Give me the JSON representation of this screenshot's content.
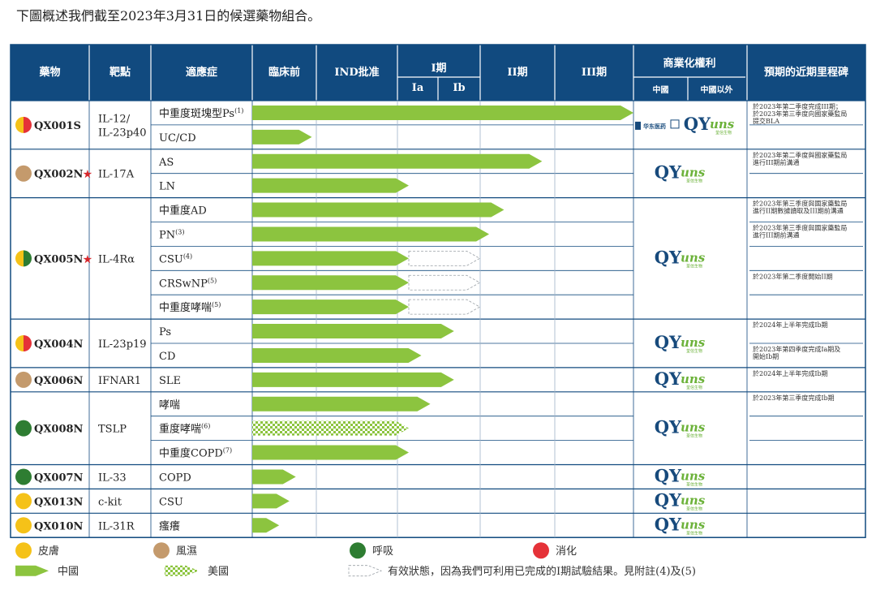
{
  "intro": "下圖概述我們截至2023年3月31日的候選藥物組合。",
  "colors": {
    "header": "#114a7f",
    "china_arrow": "#8cc43f",
    "us_arrow_pattern": "#8cc43f",
    "derm": "#f5c218",
    "rheum": "#c49a6c",
    "resp": "#2e7d32",
    "digest": "#e53238"
  },
  "headers": {
    "drug": "藥物",
    "target": "靶點",
    "indication": "適應症",
    "preclinical": "臨床前",
    "ind": "IND批准",
    "phase1": "I期",
    "phase1a": "Ia",
    "phase1b": "Ib",
    "phase2": "II期",
    "phase3": "III期",
    "commercial": "商業化權利",
    "commercial_china": "中國",
    "commercial_ex_china": "中國以外",
    "milestones": "預期的近期里程碑"
  },
  "partner": {
    "name": "华东医药"
  },
  "logo": {
    "mark": "QY",
    "script": "uns",
    "sub": "荃信生物"
  },
  "chart_data": {
    "type": "table",
    "stage_order": [
      "臨床前",
      "IND批准",
      "Ia",
      "Ib",
      "II期",
      "III期"
    ],
    "drugs": [
      {
        "name": "QX001S",
        "star": "",
        "target": "IL-12/\nIL-23p40",
        "areas": [
          "derm",
          "digest"
        ],
        "rights": "partner+qyuns",
        "indications": [
          {
            "name": "中重度斑塊型Ps",
            "note": "(1)",
            "china_progress": 6.0,
            "dashed_to": null,
            "us": false
          },
          {
            "name": "UC/CD",
            "note": "",
            "china_progress": 0.93,
            "dashed_to": null,
            "us": false
          }
        ],
        "milestones": [
          "於2023年第二季度完成III期；\n於2023年第三季度向國家藥監局\n提交BLA",
          ""
        ]
      },
      {
        "name": "QX002N",
        "star": "★",
        "target": "IL-17A",
        "areas": [
          "rheum"
        ],
        "rights": "qyuns",
        "indications": [
          {
            "name": "AS",
            "note": "",
            "china_progress": 4.83,
            "dashed_to": null,
            "us": false
          },
          {
            "name": "LN",
            "note": "",
            "china_progress": 2.28,
            "dashed_to": null,
            "us": false
          }
        ],
        "milestones": [
          "於2023年第二季度與國家藥監局\n進行III期前溝通",
          ""
        ]
      },
      {
        "name": "QX005N",
        "star": "★",
        "target": "IL-4Rα",
        "areas": [
          "derm",
          "resp"
        ],
        "rights": "qyuns",
        "indications": [
          {
            "name": "中重度AD",
            "note": "",
            "china_progress": 4.32,
            "dashed_to": null,
            "us": false
          },
          {
            "name": "PN",
            "note": "(3)",
            "china_progress": 4.12,
            "dashed_to": null,
            "us": false
          },
          {
            "name": "CSU",
            "note": "(4)",
            "china_progress": 2.28,
            "dashed_to": 3.99,
            "us": false
          },
          {
            "name": "CRSwNP",
            "note": "(5)",
            "china_progress": 2.28,
            "dashed_to": 3.99,
            "us": false
          },
          {
            "name": "中重度哮喘",
            "note": "(5)",
            "china_progress": 2.28,
            "dashed_to": 3.99,
            "us": false
          }
        ],
        "milestones": [
          "於2023年第三季度與國家藥監局\n進行II期數據讀取及III期前溝通",
          "於2023年第三季度與國家藥監局\n進行III期前溝通",
          "",
          "於2023年第二季度開始II期",
          ""
        ]
      },
      {
        "name": "QX004N",
        "star": "",
        "target": "IL-23p19",
        "areas": [
          "derm",
          "digest"
        ],
        "rights": "qyuns",
        "indications": [
          {
            "name": "Ps",
            "note": "",
            "china_progress": 3.38,
            "dashed_to": null,
            "us": false
          },
          {
            "name": "CD",
            "note": "",
            "china_progress": 2.59,
            "dashed_to": null,
            "us": false
          }
        ],
        "milestones": [
          "於2024年上半年完成Ib期",
          "於2023年第四季度完成Ia期及\n開始Ib期"
        ]
      },
      {
        "name": "QX006N",
        "star": "",
        "target": "IFNAR1",
        "areas": [
          "rheum"
        ],
        "rights": "qyuns",
        "indications": [
          {
            "name": "SLE",
            "note": "",
            "china_progress": 3.38,
            "dashed_to": null,
            "us": false
          }
        ],
        "milestones": [
          "於2024年上半年完成Ib期"
        ]
      },
      {
        "name": "QX008N",
        "star": "",
        "target": "TSLP",
        "areas": [
          "resp"
        ],
        "rights": "qyuns",
        "indications": [
          {
            "name": "哮喘",
            "note": "",
            "china_progress": 2.81,
            "dashed_to": null,
            "us": false
          },
          {
            "name": "重度哮喘",
            "note": "(6)",
            "china_progress": null,
            "dashed_to": null,
            "us": true,
            "us_progress": 2.28
          },
          {
            "name": "中重度COPD",
            "note": "(7)",
            "china_progress": 2.28,
            "dashed_to": null,
            "us": false
          }
        ],
        "milestones": [
          "於2023年第三季度完成Ib期",
          "",
          ""
        ]
      },
      {
        "name": "QX007N",
        "star": "",
        "target": "IL-33",
        "areas": [
          "resp"
        ],
        "rights": "qyuns",
        "indications": [
          {
            "name": "COPD",
            "note": "",
            "china_progress": 0.68,
            "dashed_to": null,
            "us": false
          }
        ],
        "milestones": [
          ""
        ]
      },
      {
        "name": "QX013N",
        "star": "",
        "target": "c-kit",
        "areas": [
          "derm"
        ],
        "rights": "qyuns",
        "indications": [
          {
            "name": "CSU",
            "note": "",
            "china_progress": 0.58,
            "dashed_to": null,
            "us": false
          }
        ],
        "milestones": [
          ""
        ]
      },
      {
        "name": "QX010N",
        "star": "",
        "target": "IL-31R",
        "areas": [
          "derm"
        ],
        "rights": "qyuns",
        "indications": [
          {
            "name": "瘙癢",
            "note": "",
            "china_progress": 0.42,
            "dashed_to": null,
            "us": false
          }
        ],
        "milestones": [
          ""
        ]
      }
    ]
  },
  "legend": {
    "areas": [
      {
        "key": "derm",
        "label": "皮膚"
      },
      {
        "key": "rheum",
        "label": "風濕"
      },
      {
        "key": "resp",
        "label": "呼吸"
      },
      {
        "key": "digest",
        "label": "消化"
      }
    ],
    "china": "中國",
    "us": "美國",
    "dashed": "有效狀態，因為我們可利用已完成的I期試驗結果。見附註(4)及(5)"
  }
}
